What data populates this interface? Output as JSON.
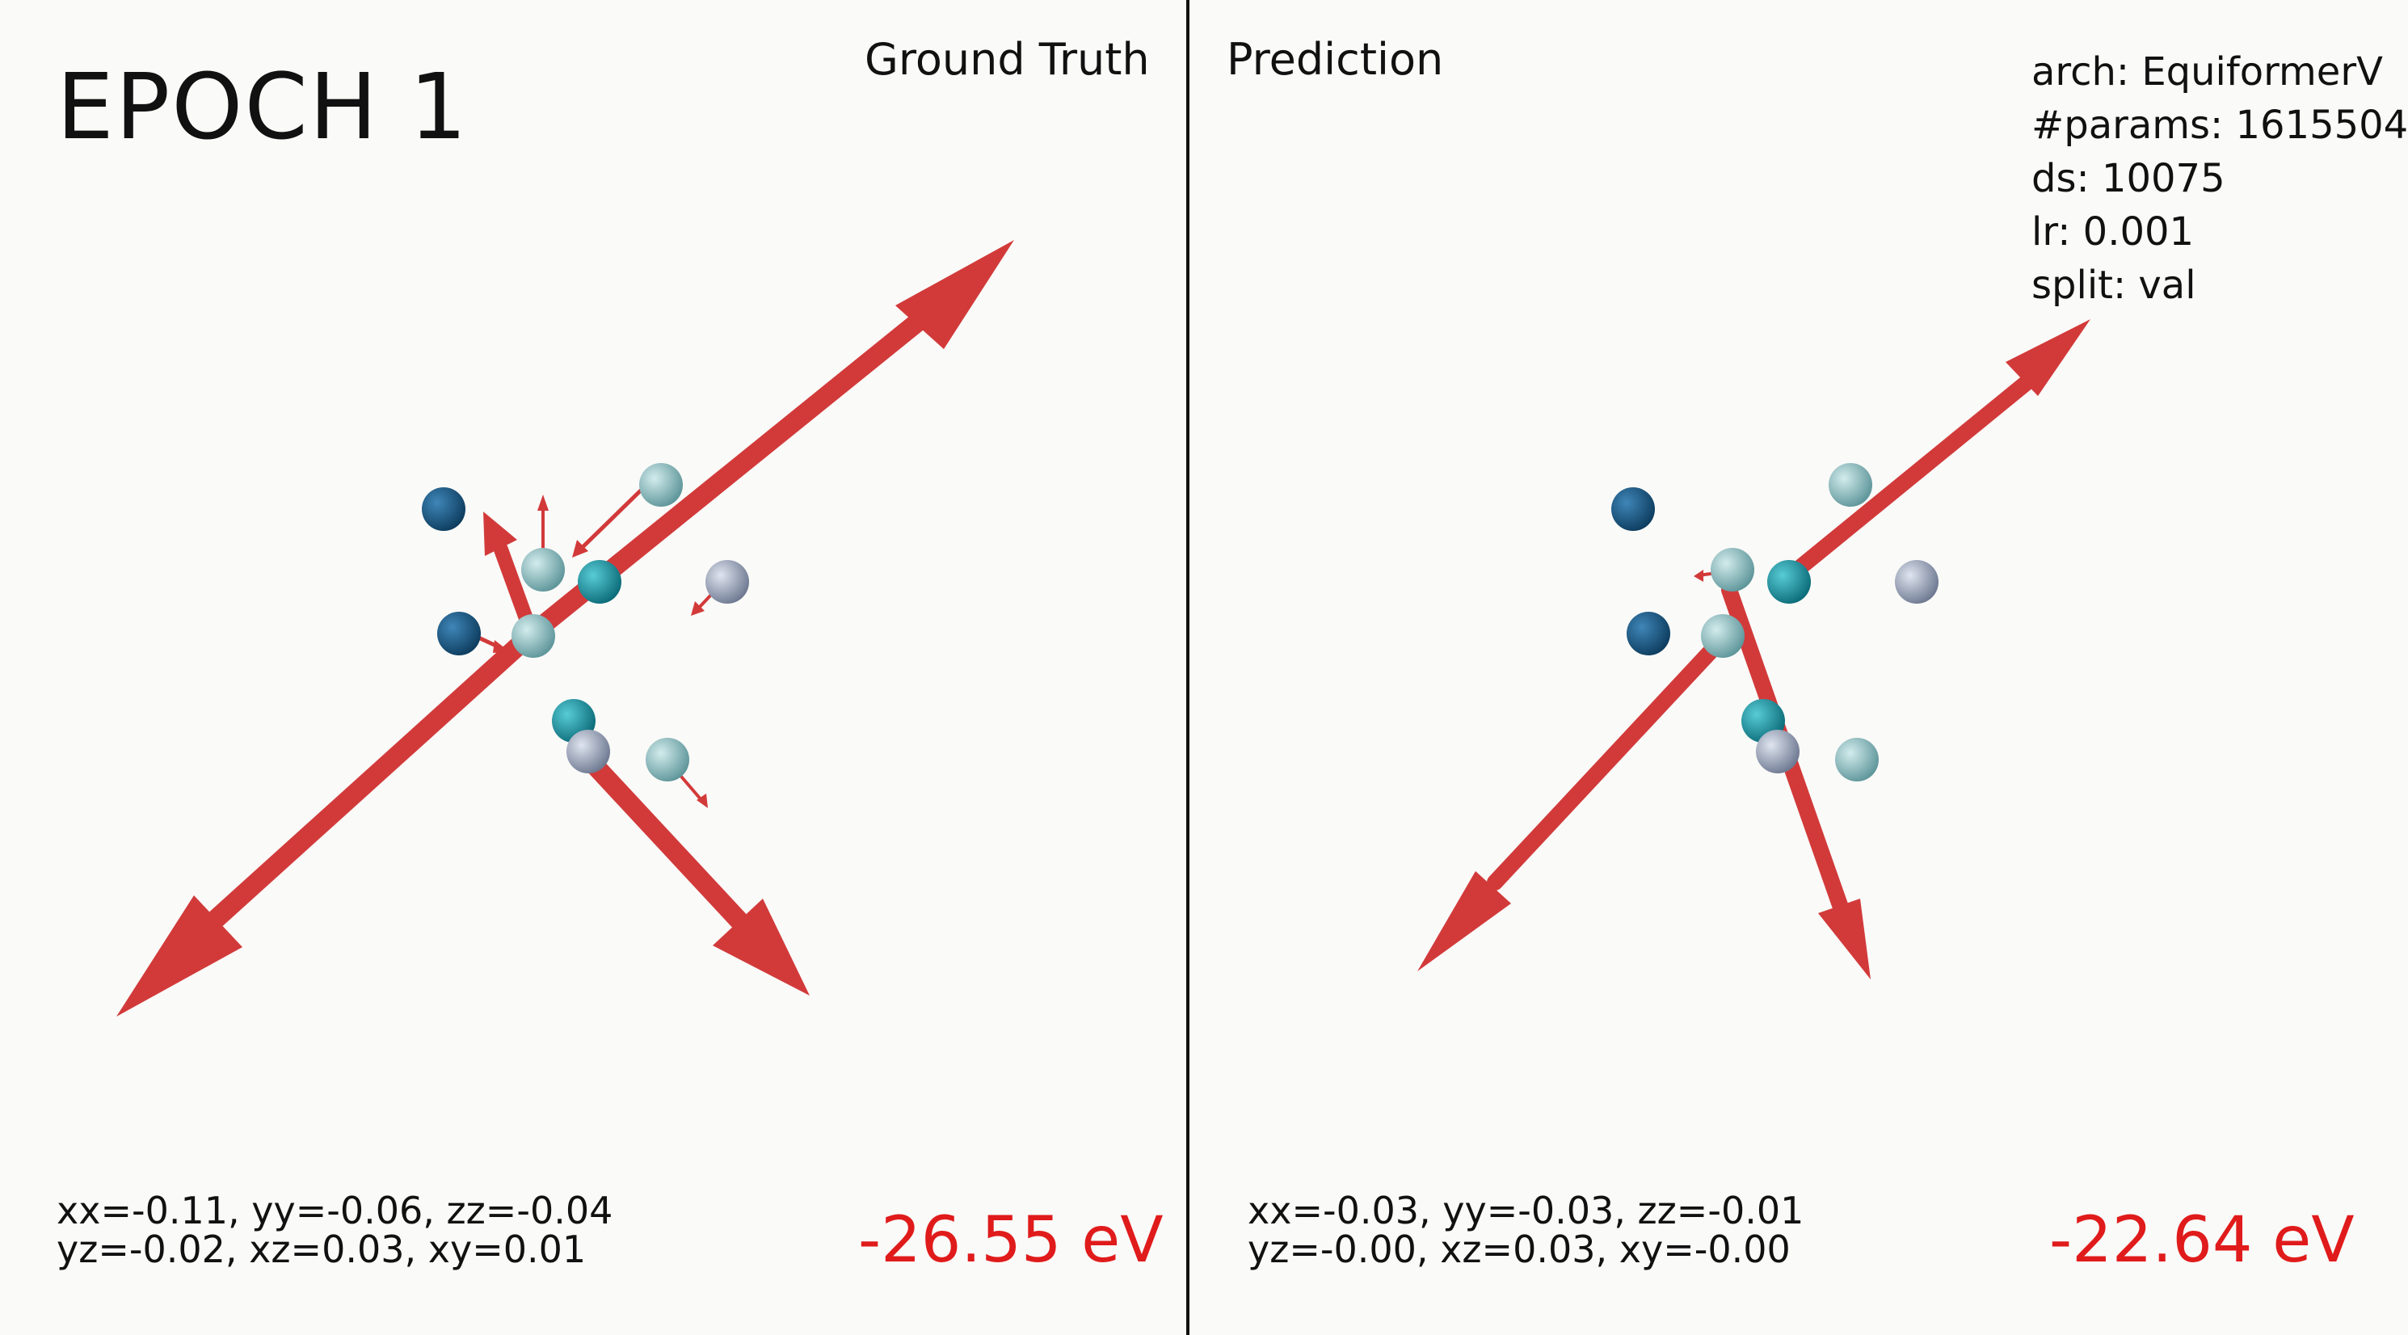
{
  "epoch_label": "EPOCH 1",
  "left_panel": {
    "title": "Ground Truth",
    "stress_line1": "xx=-0.11, yy=-0.06, zz=-0.04",
    "stress_line2": "yz=-0.02, xz=0.03, xy=0.01",
    "energy": "-26.55 eV"
  },
  "right_panel": {
    "title": "Prediction",
    "meta": [
      "arch: EquiformerV",
      "#params: 1615504",
      "ds: 10075",
      "lr: 0.001",
      "split: val"
    ],
    "stress_line1": "xx=-0.03, yy=-0.03, zz=-0.01",
    "stress_line2": "yz=-0.00, xz=0.03, xy=-0.00",
    "energy": "-22.64 eV"
  },
  "colors": {
    "arrow": "#d23a3a",
    "energy_text": "#e01b1b",
    "atom_dark_blue": "#1a5a86",
    "atom_teal": "#1a9aa8",
    "atom_pale_teal": "#8fc0c4",
    "atom_gray_blue": "#a3aec4",
    "background": "#fafaf8"
  }
}
